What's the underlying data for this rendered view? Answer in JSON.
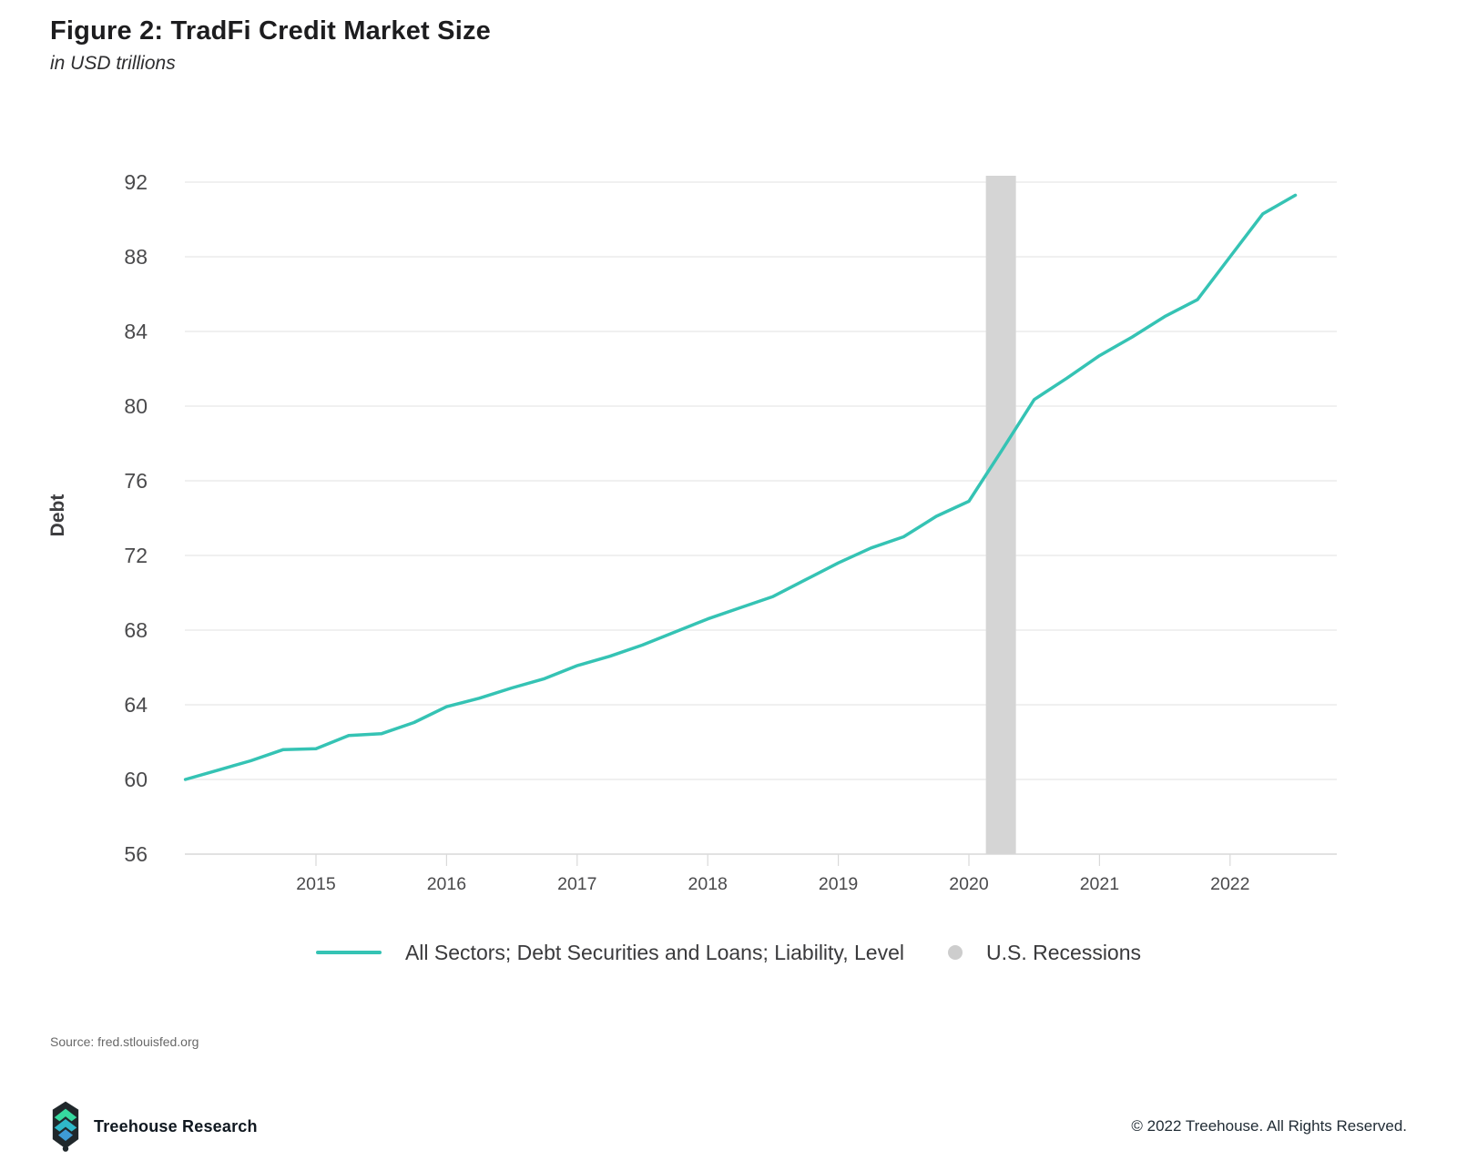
{
  "figure": {
    "title": "Figure 2: TradFi Credit Market Size",
    "subtitle": "in USD trillions"
  },
  "chart_data": {
    "type": "line",
    "title": "Figure 2: TradFi Credit Market Size",
    "subtitle": "in USD trillions",
    "xlabel": "",
    "ylabel": "Debt",
    "unit": "USD trillions",
    "grid": "horizontal",
    "legend_position": "bottom",
    "y_ticks": [
      56,
      60,
      64,
      68,
      72,
      76,
      80,
      84,
      88,
      92
    ],
    "x_ticks": [
      2015,
      2016,
      2017,
      2018,
      2019,
      2020,
      2021,
      2022
    ],
    "ylim": [
      54.5,
      93.5
    ],
    "xlim": [
      2014.0,
      2022.85
    ],
    "series": [
      {
        "name": "All Sectors; Debt Securities and Loans; Liability, Level",
        "color": "#35c3b4",
        "x_start": 2014.0,
        "x_step": 0.25,
        "quarters": [
          "2013 Q4",
          "2014 Q1",
          "2014 Q2",
          "2014 Q3",
          "2014 Q4",
          "2015 Q1",
          "2015 Q2",
          "2015 Q3",
          "2015 Q4",
          "2016 Q1",
          "2016 Q2",
          "2016 Q3",
          "2016 Q4",
          "2017 Q1",
          "2017 Q2",
          "2017 Q3",
          "2017 Q4",
          "2018 Q1",
          "2018 Q2",
          "2018 Q3",
          "2018 Q4",
          "2019 Q1",
          "2019 Q2",
          "2019 Q3",
          "2019 Q4",
          "2020 Q1",
          "2020 Q2",
          "2020 Q3",
          "2020 Q4",
          "2021 Q1",
          "2021 Q2",
          "2021 Q3",
          "2021 Q4",
          "2022 Q1",
          "2022 Q2"
        ],
        "values": [
          60.0,
          60.5,
          61.0,
          61.6,
          61.65,
          62.35,
          62.45,
          63.05,
          63.9,
          64.35,
          64.9,
          65.4,
          66.1,
          66.6,
          67.2,
          67.9,
          68.6,
          69.2,
          69.8,
          70.7,
          71.6,
          72.4,
          73.0,
          74.1,
          74.9,
          77.6,
          80.35,
          81.5,
          82.7,
          83.7,
          84.8,
          85.7,
          88.0,
          90.3,
          91.3
        ]
      }
    ],
    "recessions": [
      {
        "label": "U.S. Recessions",
        "x_start": 2020.13,
        "x_end": 2020.36,
        "color": "#d5d5d5"
      }
    ]
  },
  "legend": {
    "series_label": "All Sectors; Debt Securities and Loans; Liability, Level",
    "recession_label": "U.S. Recessions",
    "series_color": "#35c3b4",
    "recession_dot_color": "#cdcdcd"
  },
  "source": {
    "text": "Source: fred.stlouisfed.org"
  },
  "footer": {
    "brand": "Treehouse Research",
    "copyright": "© 2022 Treehouse. All Rights Reserved."
  },
  "colors": {
    "line": "#35c3b4",
    "recession_band": "#d5d5d5",
    "gridline": "#ececec",
    "axis_line": "#e2e2e2",
    "tick_mark": "#d9d9d9",
    "axis_text": "#4a4a4c",
    "axis_title": "#3d3d3f"
  }
}
